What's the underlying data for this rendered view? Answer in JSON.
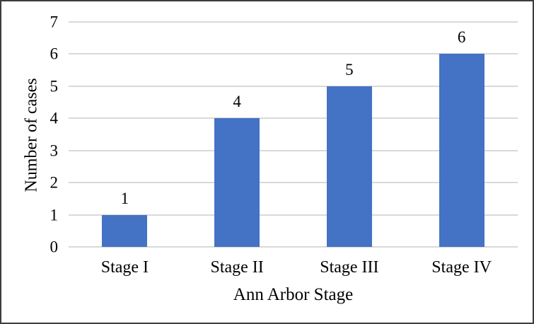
{
  "figure": {
    "background": "#FFFFFF",
    "frame_color": "#3D3D3D"
  },
  "chart_data": {
    "type": "bar",
    "categories": [
      "Stage I",
      "Stage II",
      "Stage III",
      "Stage IV"
    ],
    "values": [
      1,
      4,
      5,
      6
    ],
    "data_labels": [
      "1",
      "4",
      "5",
      "6"
    ],
    "title": "",
    "xlabel": "Ann Arbor Stage",
    "ylabel": "Number of cases",
    "ylim": [
      0,
      7
    ],
    "ytick_step": 1,
    "yticks": [
      "0",
      "1",
      "2",
      "3",
      "4",
      "5",
      "6",
      "7"
    ],
    "grid": true,
    "legend": "none",
    "bar_color": "#4472C4",
    "gridline_color": "#D9D9D9",
    "text_color": "#000000"
  }
}
